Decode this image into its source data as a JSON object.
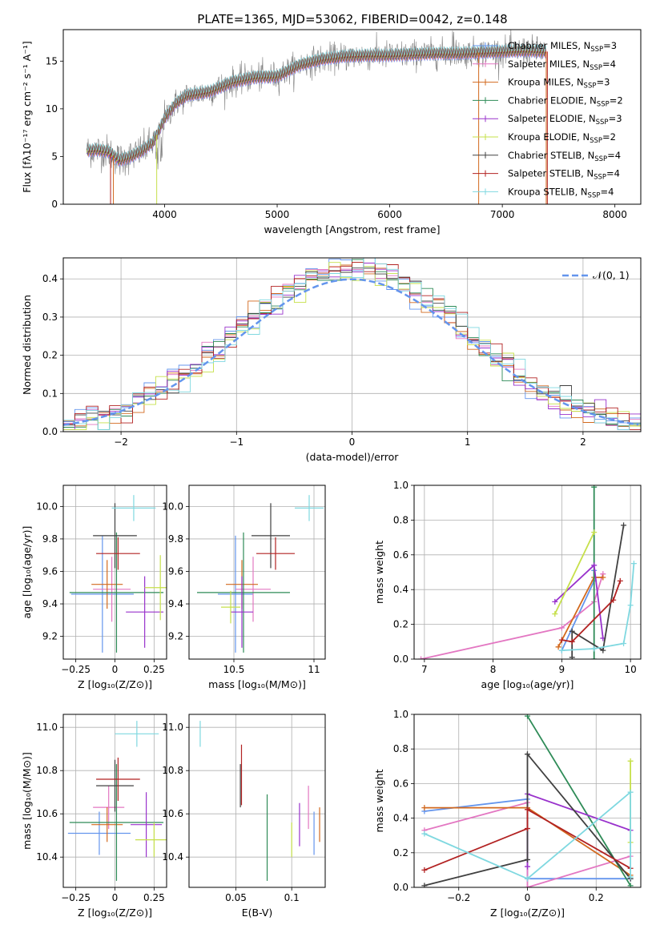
{
  "figure": {
    "title": "PLATE=1365, MJD=53062, FIBERID=0042, z=0.148"
  },
  "chart_data": [
    {
      "name": "spectrum",
      "type": "line",
      "xlabel": "wavelength [Angstrom, rest frame]",
      "ylabel": "Flux [fλ10⁻¹⁷ erg cm⁻² s⁻¹ A⁻¹]",
      "xlim": [
        3100,
        8230
      ],
      "ylim": [
        0,
        18.3
      ],
      "xticks": [
        4000,
        5000,
        6000,
        7000,
        8000
      ],
      "yticks": [
        0,
        5,
        10,
        15
      ],
      "grid": false,
      "legend_position": "top-right",
      "data_color": "#808080",
      "continuum": {
        "x": [
          3300,
          3400,
          3500,
          3600,
          3700,
          3800,
          3900,
          4000,
          4100,
          4200,
          4400,
          4600,
          4800,
          5000,
          5200,
          5400,
          5600,
          5800,
          6000,
          6200,
          6400,
          6600,
          6800,
          7000,
          7200,
          7400
        ],
        "y": [
          5.6,
          5.7,
          5.5,
          4.6,
          5.0,
          5.6,
          6.5,
          9.0,
          10.6,
          11.4,
          11.8,
          12.8,
          13.3,
          13.4,
          14.6,
          15.2,
          15.5,
          15.6,
          15.6,
          15.7,
          15.8,
          15.8,
          15.9,
          16.0,
          16.1,
          16.0
        ]
      },
      "legend": [
        {
          "label": "Chabrier MILES, N",
          "sub": "SSP",
          "suffix": "=3",
          "color": "#6495ed"
        },
        {
          "label": "Salpeter MILES, N",
          "sub": "SSP",
          "suffix": "=4",
          "color": "#e377c2"
        },
        {
          "label": "Kroupa MILES, N",
          "sub": "SSP",
          "suffix": "=3",
          "color": "#d2691e"
        },
        {
          "label": "Chabrier ELODIE, N",
          "sub": "SSP",
          "suffix": "=2",
          "color": "#2e8b57"
        },
        {
          "label": "Salpeter ELODIE, N",
          "sub": "SSP",
          "suffix": "=3",
          "color": "#9932cc"
        },
        {
          "label": "Kroupa ELODIE, N",
          "sub": "SSP",
          "suffix": "=2",
          "color": "#c6e04a"
        },
        {
          "label": "Chabrier STELIB, N",
          "sub": "SSP",
          "suffix": "=4",
          "color": "#404040"
        },
        {
          "label": "Salpeter STELIB, N",
          "sub": "SSP",
          "suffix": "=4",
          "color": "#b22222"
        },
        {
          "label": "Kroupa STELIB, N",
          "sub": "SSP",
          "suffix": "=4",
          "color": "#7fd8e0"
        }
      ]
    },
    {
      "name": "residual-distribution",
      "type": "line",
      "xlabel": "(data-model)/error",
      "ylabel": "Normed distribution",
      "xlim": [
        -2.5,
        2.5
      ],
      "ylim": [
        0,
        0.455
      ],
      "xticks": [
        -2,
        -1,
        0,
        1,
        2
      ],
      "yticks": [
        0.0,
        0.1,
        0.2,
        0.3,
        0.4
      ],
      "grid": true,
      "legend": [
        {
          "label": "𝒩(0, 1)",
          "color": "#6495ed"
        }
      ],
      "legend_position": "top-right"
    },
    {
      "name": "age-vs-Z",
      "type": "scatter",
      "xlabel": "Z [log₁₀(Z/Z⊙)]",
      "ylabel": "age  [log₁₀(age/yr)]",
      "xlim": [
        -0.33,
        0.33
      ],
      "ylim": [
        9.06,
        10.13
      ],
      "xticks": [
        -0.25,
        0.0,
        0.25
      ],
      "yticks": [
        9.2,
        9.4,
        9.6,
        9.8,
        10.0
      ],
      "grid": true,
      "points": [
        {
          "x": -0.08,
          "y": 9.46,
          "xerr": 0.2,
          "yerr": 0.36,
          "color": "#6495ed"
        },
        {
          "x": -0.02,
          "y": 9.49,
          "xerr": 0.12,
          "yerr": 0.2,
          "color": "#e377c2"
        },
        {
          "x": -0.05,
          "y": 9.52,
          "xerr": 0.1,
          "yerr": 0.15,
          "color": "#d2691e"
        },
        {
          "x": 0.01,
          "y": 9.47,
          "xerr": 0.3,
          "yerr": 0.37,
          "color": "#2e8b57"
        },
        {
          "x": 0.19,
          "y": 9.35,
          "xerr": 0.12,
          "yerr": 0.22,
          "color": "#9932cc"
        },
        {
          "x": 0.29,
          "y": 9.5,
          "xerr": 0.1,
          "yerr": 0.2,
          "color": "#c6e04a"
        },
        {
          "x": 0.0,
          "y": 9.82,
          "xerr": 0.14,
          "yerr": 0.2,
          "color": "#404040"
        },
        {
          "x": 0.02,
          "y": 9.71,
          "xerr": 0.14,
          "yerr": 0.1,
          "color": "#b22222"
        },
        {
          "x": 0.12,
          "y": 9.99,
          "xerr": 0.14,
          "yerr": 0.08,
          "color": "#7fd8e0"
        }
      ]
    },
    {
      "name": "age-vs-mass",
      "type": "scatter",
      "xlabel": "mass [log₁₀(M/M⊙)]",
      "ylabel": "",
      "xlim": [
        10.22,
        11.07
      ],
      "ylim": [
        9.06,
        10.13
      ],
      "xticks": [
        10.5,
        11.0
      ],
      "yticks": [
        9.2,
        9.4,
        9.6,
        9.8,
        10.0
      ],
      "grid": true,
      "points": [
        {
          "x": 10.51,
          "y": 9.46,
          "xerr": 0.11,
          "yerr": 0.36,
          "color": "#6495ed"
        },
        {
          "x": 10.62,
          "y": 9.49,
          "xerr": 0.11,
          "yerr": 0.2,
          "color": "#e377c2"
        },
        {
          "x": 10.55,
          "y": 9.52,
          "xerr": 0.1,
          "yerr": 0.15,
          "color": "#d2691e"
        },
        {
          "x": 10.56,
          "y": 9.47,
          "xerr": 0.29,
          "yerr": 0.37,
          "color": "#2e8b57"
        },
        {
          "x": 10.55,
          "y": 9.35,
          "xerr": 0.07,
          "yerr": 0.22,
          "color": "#9932cc"
        },
        {
          "x": 10.48,
          "y": 9.38,
          "xerr": 0.06,
          "yerr": 0.1,
          "color": "#c6e04a"
        },
        {
          "x": 10.73,
          "y": 9.82,
          "xerr": 0.12,
          "yerr": 0.2,
          "color": "#404040"
        },
        {
          "x": 10.76,
          "y": 9.71,
          "xerr": 0.12,
          "yerr": 0.1,
          "color": "#b22222"
        },
        {
          "x": 10.97,
          "y": 9.99,
          "xerr": 0.09,
          "yerr": 0.08,
          "color": "#7fd8e0"
        }
      ]
    },
    {
      "name": "mass-weight-vs-age",
      "type": "line",
      "xlabel": "age  [log₁₀(age/yr)]",
      "ylabel": "mass weight",
      "xlim": [
        6.85,
        10.15
      ],
      "ylim": [
        0,
        1.0
      ],
      "xticks": [
        7,
        8,
        9,
        10
      ],
      "yticks": [
        0.0,
        0.2,
        0.4,
        0.6,
        0.8,
        1.0
      ],
      "grid": true,
      "series": [
        {
          "color": "#6495ed",
          "x": [
            9.0,
            9.47,
            9.47
          ],
          "y": [
            0.05,
            0.45,
            0.51
          ]
        },
        {
          "color": "#e377c2",
          "x": [
            6.95,
            9.0,
            9.47,
            9.6
          ],
          "y": [
            0.0,
            0.18,
            0.33,
            0.49
          ]
        },
        {
          "color": "#d2691e",
          "x": [
            8.95,
            9.47,
            9.6
          ],
          "y": [
            0.07,
            0.47,
            0.47
          ]
        },
        {
          "color": "#2e8b57",
          "x": [
            9.47,
            9.47
          ],
          "y": [
            0.0,
            0.99
          ]
        },
        {
          "color": "#9932cc",
          "x": [
            8.9,
            9.47,
            9.6
          ],
          "y": [
            0.33,
            0.54,
            0.12
          ]
        },
        {
          "color": "#c6e04a",
          "x": [
            8.9,
            9.47
          ],
          "y": [
            0.26,
            0.73
          ]
        },
        {
          "color": "#404040",
          "x": [
            9.15,
            9.15,
            9.6,
            9.9
          ],
          "y": [
            0.01,
            0.16,
            0.05,
            0.77
          ]
        },
        {
          "color": "#b22222",
          "x": [
            9.0,
            9.15,
            9.75,
            9.85
          ],
          "y": [
            0.11,
            0.1,
            0.34,
            0.45
          ]
        },
        {
          "color": "#7fd8e0",
          "x": [
            9.0,
            9.47,
            9.9,
            10.0,
            10.05
          ],
          "y": [
            0.05,
            0.06,
            0.09,
            0.31,
            0.55
          ]
        }
      ]
    },
    {
      "name": "mass-vs-Z",
      "type": "scatter",
      "xlabel": "Z [log₁₀(Z/Z⊙)]",
      "ylabel": "mass [log₁₀(M/M⊙)]",
      "xlim": [
        -0.33,
        0.33
      ],
      "ylim": [
        10.26,
        11.06
      ],
      "xticks": [
        -0.25,
        0.0,
        0.25
      ],
      "yticks": [
        10.4,
        10.6,
        10.8,
        11.0
      ],
      "grid": true,
      "points": [
        {
          "x": -0.1,
          "y": 10.51,
          "xerr": 0.2,
          "yerr": 0.1,
          "color": "#6495ed"
        },
        {
          "x": -0.04,
          "y": 10.63,
          "xerr": 0.1,
          "yerr": 0.1,
          "color": "#e377c2"
        },
        {
          "x": -0.05,
          "y": 10.55,
          "xerr": 0.1,
          "yerr": 0.08,
          "color": "#d2691e"
        },
        {
          "x": 0.01,
          "y": 10.56,
          "xerr": 0.3,
          "yerr": 0.27,
          "color": "#2e8b57"
        },
        {
          "x": 0.2,
          "y": 10.55,
          "xerr": 0.1,
          "yerr": 0.15,
          "color": "#9932cc"
        },
        {
          "x": 0.25,
          "y": 10.48,
          "xerr": 0.12,
          "yerr": 0.08,
          "color": "#c6e04a"
        },
        {
          "x": 0.0,
          "y": 10.73,
          "xerr": 0.12,
          "yerr": 0.12,
          "color": "#404040"
        },
        {
          "x": 0.02,
          "y": 10.76,
          "xerr": 0.14,
          "yerr": 0.1,
          "color": "#b22222"
        },
        {
          "x": 0.14,
          "y": 10.97,
          "xerr": 0.14,
          "yerr": 0.06,
          "color": "#7fd8e0"
        }
      ]
    },
    {
      "name": "mass-vs-EBV",
      "type": "scatter",
      "xlabel": "E(B-V)",
      "ylabel": "",
      "xlim": [
        0.008,
        0.13
      ],
      "ylim": [
        10.26,
        11.06
      ],
      "xticks": [
        0.05,
        0.1
      ],
      "yticks": [
        10.4,
        10.6,
        10.8,
        11.0
      ],
      "grid": true,
      "points": [
        {
          "x": 0.12,
          "y": 10.51,
          "xerr": 0,
          "yerr": 0.1,
          "color": "#6495ed"
        },
        {
          "x": 0.115,
          "y": 10.63,
          "xerr": 0,
          "yerr": 0.1,
          "color": "#e377c2"
        },
        {
          "x": 0.125,
          "y": 10.55,
          "xerr": 0,
          "yerr": 0.08,
          "color": "#d2691e"
        },
        {
          "x": 0.078,
          "y": 10.49,
          "xerr": 0,
          "yerr": 0.2,
          "color": "#2e8b57"
        },
        {
          "x": 0.107,
          "y": 10.55,
          "xerr": 0,
          "yerr": 0.1,
          "color": "#9932cc"
        },
        {
          "x": 0.1,
          "y": 10.48,
          "xerr": 0,
          "yerr": 0.08,
          "color": "#c6e04a"
        },
        {
          "x": 0.054,
          "y": 10.73,
          "xerr": 0,
          "yerr": 0.1,
          "color": "#404040"
        },
        {
          "x": 0.055,
          "y": 10.78,
          "xerr": 0,
          "yerr": 0.14,
          "color": "#b22222"
        },
        {
          "x": 0.018,
          "y": 10.97,
          "xerr": 0,
          "yerr": 0.06,
          "color": "#7fd8e0"
        }
      ]
    },
    {
      "name": "mass-weight-vs-Z",
      "type": "line",
      "xlabel": "Z [log₁₀(Z/Z⊙)]",
      "ylabel": "mass weight",
      "xlim": [
        -0.33,
        0.33
      ],
      "ylim": [
        0,
        1.0
      ],
      "xticks": [
        -0.2,
        0.0,
        0.2
      ],
      "yticks": [
        0.0,
        0.2,
        0.4,
        0.6,
        0.8,
        1.0
      ],
      "grid": true,
      "series": [
        {
          "color": "#6495ed",
          "x": [
            -0.3,
            0.0,
            0.0,
            0.3
          ],
          "y": [
            0.44,
            0.51,
            0.05,
            0.05
          ]
        },
        {
          "color": "#e377c2",
          "x": [
            -0.3,
            0.0,
            0.0,
            0.3
          ],
          "y": [
            0.33,
            0.49,
            0.0,
            0.18
          ]
        },
        {
          "color": "#d2691e",
          "x": [
            -0.3,
            0.0,
            0.3
          ],
          "y": [
            0.46,
            0.46,
            0.07
          ]
        },
        {
          "color": "#2e8b57",
          "x": [
            0.0,
            0.3
          ],
          "y": [
            0.99,
            0.01
          ]
        },
        {
          "color": "#9932cc",
          "x": [
            0.0,
            0.0,
            0.3
          ],
          "y": [
            0.12,
            0.54,
            0.33
          ]
        },
        {
          "color": "#c6e04a",
          "x": [
            0.3,
            0.3
          ],
          "y": [
            0.26,
            0.73
          ]
        },
        {
          "color": "#404040",
          "x": [
            -0.3,
            0.0,
            0.0,
            0.3
          ],
          "y": [
            0.01,
            0.16,
            0.77,
            0.05
          ]
        },
        {
          "color": "#b22222",
          "x": [
            -0.3,
            0.0,
            0.0,
            0.3
          ],
          "y": [
            0.1,
            0.34,
            0.45,
            0.11
          ]
        },
        {
          "color": "#7fd8e0",
          "x": [
            -0.3,
            0.0,
            0.3,
            0.3
          ],
          "y": [
            0.31,
            0.05,
            0.55,
            0.06
          ]
        }
      ]
    }
  ]
}
